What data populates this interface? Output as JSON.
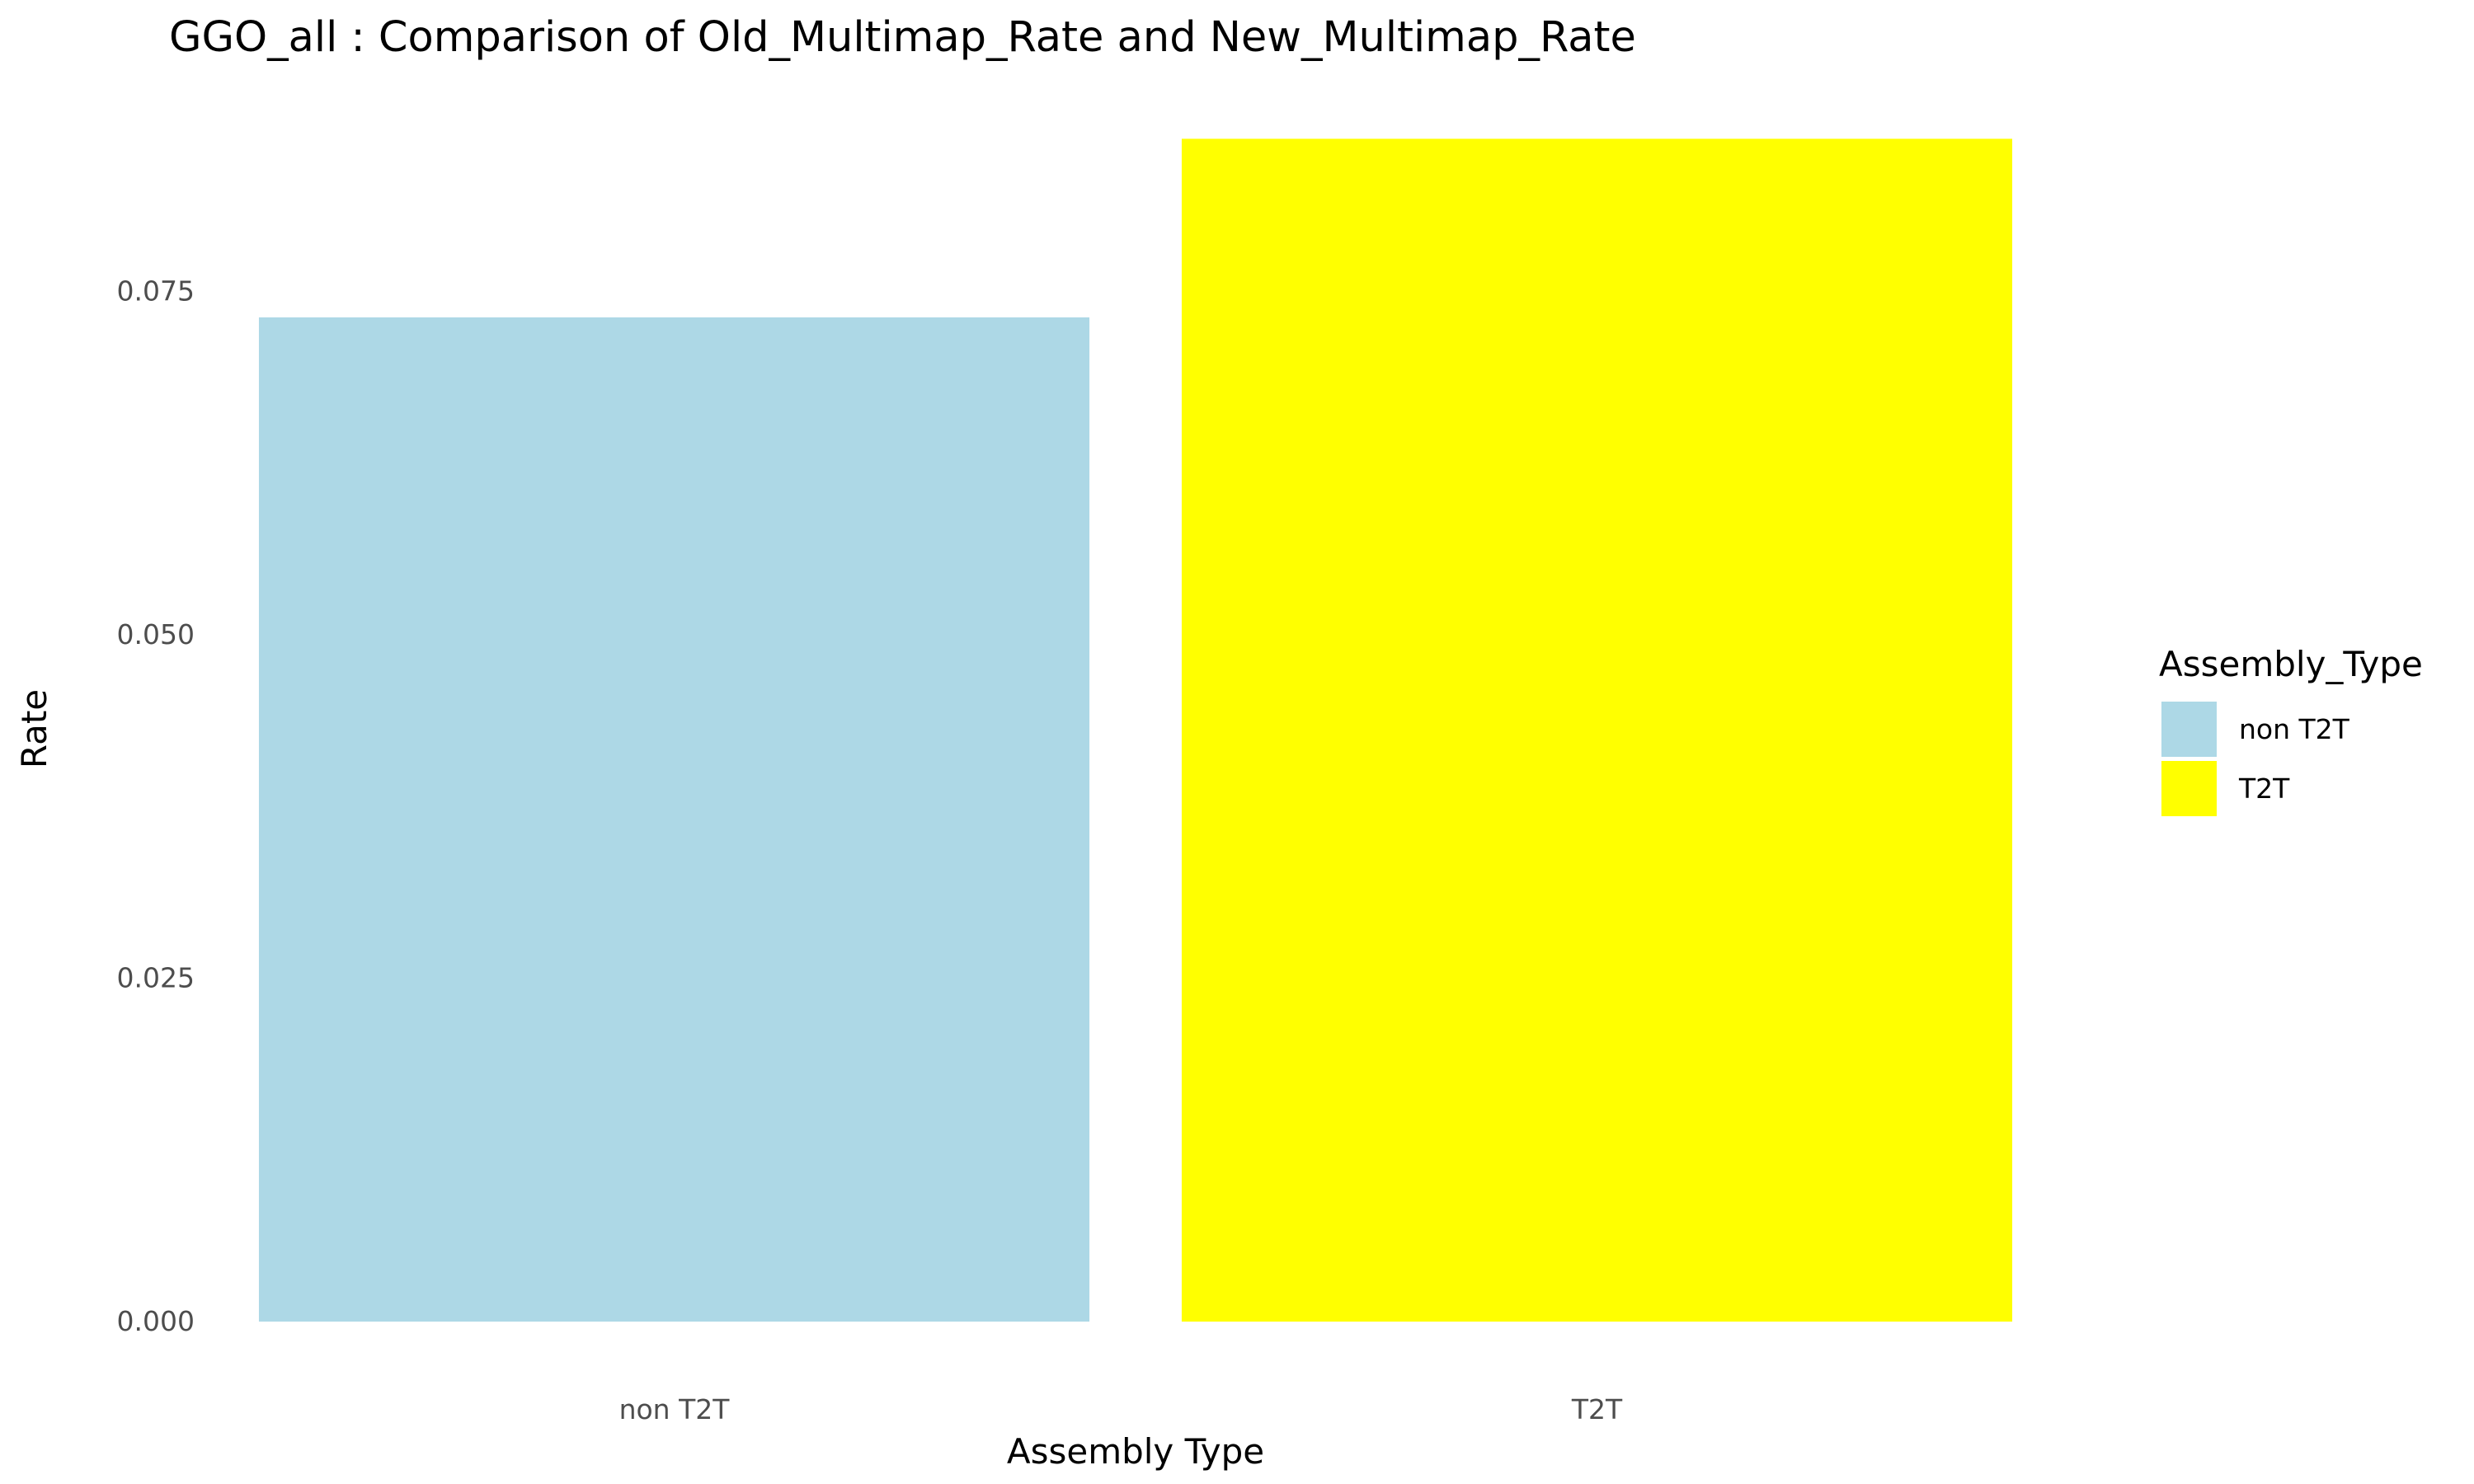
{
  "chart_data": {
    "type": "bar",
    "title": "GGO_all : Comparison of Old_Multimap_Rate and New_Multimap_Rate",
    "xlabel": "Assembly Type",
    "ylabel": "Rate",
    "categories": [
      "non T2T",
      "T2T"
    ],
    "values": [
      0.0731,
      0.0861
    ],
    "colors": [
      "#add8e6",
      "#ffff00"
    ],
    "ylim": [
      0,
      0.086
    ],
    "yticks": [
      0,
      0.025,
      0.05,
      0.075
    ],
    "ytick_labels": [
      "0.000",
      "0.025",
      "0.050",
      "0.075"
    ],
    "grid": false,
    "legend": {
      "title": "Assembly_Type",
      "placement": "right",
      "entries": [
        "non T2T",
        "T2T"
      ]
    }
  }
}
